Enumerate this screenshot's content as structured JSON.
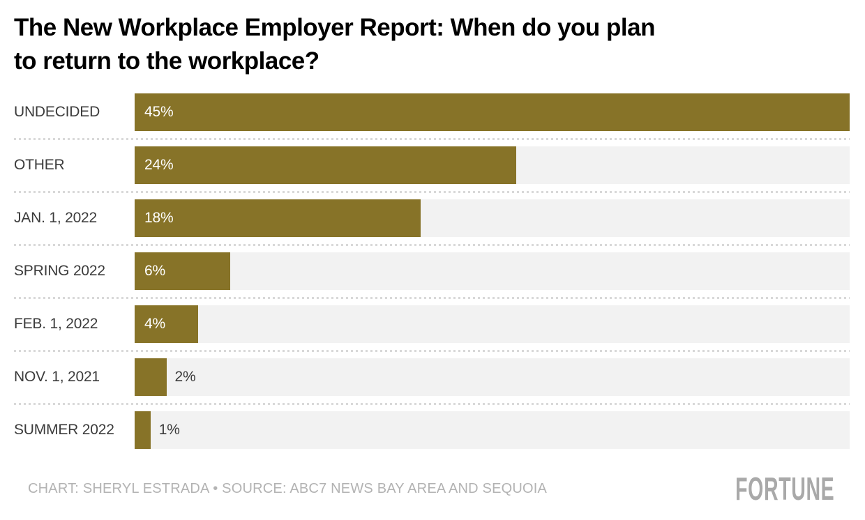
{
  "header": {
    "title_line1": "The New Workplace Employer Report: When do you plan",
    "title_line2": "to return to the workplace?"
  },
  "chart_data": {
    "type": "bar",
    "orientation": "horizontal",
    "title": "The New Workplace Employer Report: When do you plan to return to the workplace?",
    "categories": [
      "UNDECIDED",
      "OTHER",
      "JAN. 1, 2022",
      "SPRING 2022",
      "FEB. 1, 2022",
      "NOV. 1, 2021",
      "SUMMER 2022"
    ],
    "values": [
      45,
      24,
      18,
      6,
      4,
      2,
      1
    ],
    "value_labels": [
      "45%",
      "24%",
      "18%",
      "6%",
      "4%",
      "2%",
      "1%"
    ],
    "xlim": [
      0,
      45
    ],
    "inside_label_threshold": 4,
    "bar_color": "#877328",
    "track_color": "#f2f2f2",
    "grid": "dotted-row-separators",
    "legend": "none",
    "xlabel": "",
    "ylabel": ""
  },
  "footer": {
    "credit": "CHART: SHERYL ESTRADA • SOURCE: ABC7 NEWS BAY AREA AND SEQUOIA",
    "brand": "FORTUNE"
  }
}
